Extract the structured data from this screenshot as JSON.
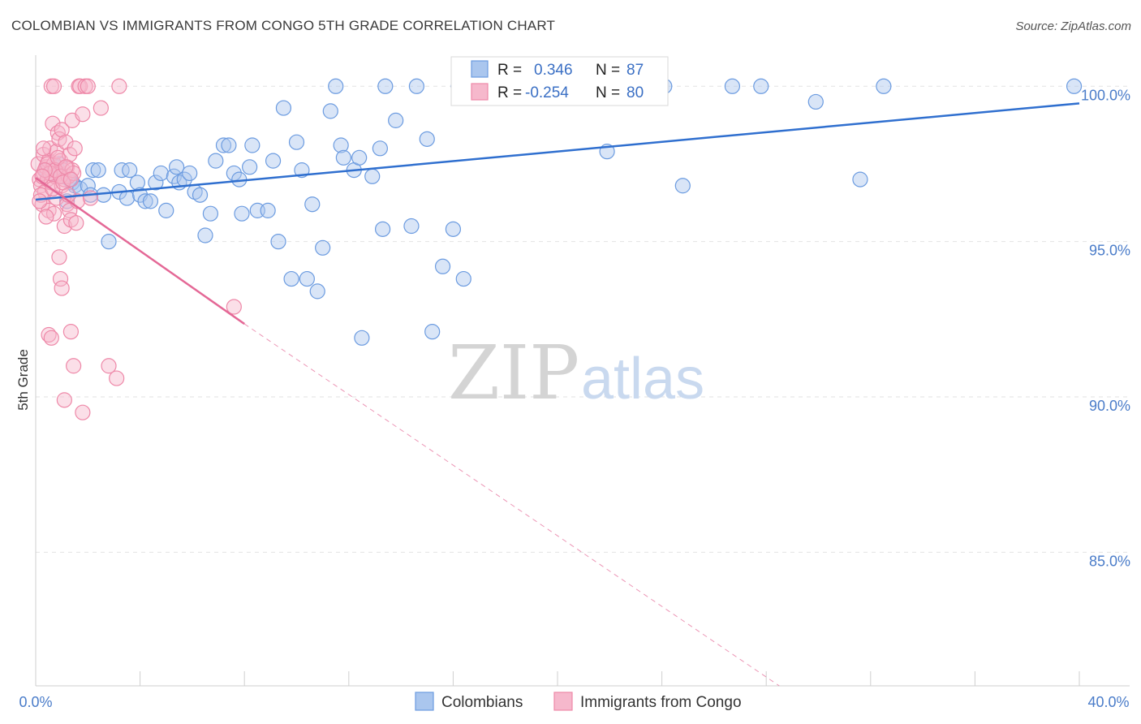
{
  "header": {
    "title": "COLOMBIAN VS IMMIGRANTS FROM CONGO 5TH GRADE CORRELATION CHART",
    "source": "Source: ZipAtlas.com"
  },
  "watermark": {
    "zip": "ZIP",
    "atlas": "atlas"
  },
  "colors": {
    "blue_fill": "#aac6ee",
    "blue_stroke": "#6b9be0",
    "blue_line": "#2f6fcf",
    "pink_fill": "#f6b8cc",
    "pink_stroke": "#ee88a8",
    "pink_line": "#e46896",
    "grid": "#e2e2e2",
    "axis_text": "#4a7cc9"
  },
  "legend": {
    "rows": [
      {
        "r_label": "R =",
        "r_value": "0.346",
        "n_label": "N =",
        "n_value": "87"
      },
      {
        "r_label": "R =",
        "r_value": "-0.254",
        "n_label": "N =",
        "n_value": "80"
      }
    ]
  },
  "chart_data": {
    "type": "scatter",
    "title": "COLOMBIAN VS IMMIGRANTS FROM CONGO 5TH GRADE CORRELATION CHART",
    "xlabel": "",
    "ylabel": "5th Grade",
    "xlim": [
      0,
      40
    ],
    "ylim": [
      80.7,
      101.0
    ],
    "x_tick_labels": [
      "0.0%",
      "40.0%"
    ],
    "y_ticks": [
      85,
      90,
      95,
      100
    ],
    "y_tick_labels": [
      "85.0%",
      "90.0%",
      "95.0%",
      "100.0%"
    ],
    "grid": true,
    "legend_position": "top-center",
    "series": [
      {
        "name": "Colombians",
        "r": 0.346,
        "n": 87,
        "trend": {
          "x": [
            0,
            40
          ],
          "y": [
            96.35,
            99.45
          ],
          "style": "solid"
        },
        "points": [
          [
            0.4,
            97.3
          ],
          [
            0.6,
            97.2
          ],
          [
            0.8,
            97.4
          ],
          [
            1.0,
            97.1
          ],
          [
            1.2,
            96.3
          ],
          [
            1.4,
            96.9
          ],
          [
            1.5,
            96.8
          ],
          [
            1.7,
            96.7
          ],
          [
            2.0,
            96.8
          ],
          [
            2.2,
            97.3
          ],
          [
            2.4,
            97.3
          ],
          [
            2.6,
            96.5
          ],
          [
            2.8,
            95.0
          ],
          [
            3.2,
            96.6
          ],
          [
            3.3,
            97.3
          ],
          [
            3.5,
            96.4
          ],
          [
            3.6,
            97.3
          ],
          [
            3.9,
            96.9
          ],
          [
            4.0,
            96.5
          ],
          [
            4.2,
            96.3
          ],
          [
            4.4,
            96.3
          ],
          [
            4.6,
            96.9
          ],
          [
            4.8,
            97.2
          ],
          [
            5.0,
            96.0
          ],
          [
            5.3,
            97.1
          ],
          [
            5.4,
            97.4
          ],
          [
            5.5,
            96.9
          ],
          [
            5.7,
            97.0
          ],
          [
            5.9,
            97.2
          ],
          [
            6.1,
            96.6
          ],
          [
            6.3,
            96.5
          ],
          [
            6.5,
            95.2
          ],
          [
            6.7,
            95.9
          ],
          [
            6.9,
            97.6
          ],
          [
            7.2,
            98.1
          ],
          [
            7.4,
            98.1
          ],
          [
            7.6,
            97.2
          ],
          [
            7.8,
            97.0
          ],
          [
            7.9,
            95.9
          ],
          [
            8.2,
            97.4
          ],
          [
            8.3,
            98.1
          ],
          [
            8.5,
            96.0
          ],
          [
            8.9,
            96.0
          ],
          [
            9.1,
            97.6
          ],
          [
            9.3,
            95.0
          ],
          [
            9.5,
            99.3
          ],
          [
            9.8,
            93.8
          ],
          [
            10.0,
            98.2
          ],
          [
            10.2,
            97.3
          ],
          [
            10.4,
            93.8
          ],
          [
            10.6,
            96.2
          ],
          [
            10.8,
            93.4
          ],
          [
            11.0,
            94.8
          ],
          [
            11.3,
            99.2
          ],
          [
            11.5,
            100.0
          ],
          [
            11.7,
            98.1
          ],
          [
            11.8,
            97.7
          ],
          [
            12.2,
            97.3
          ],
          [
            12.4,
            97.7
          ],
          [
            12.5,
            91.9
          ],
          [
            12.9,
            97.1
          ],
          [
            13.2,
            98.0
          ],
          [
            13.3,
            95.4
          ],
          [
            13.4,
            100.0
          ],
          [
            13.8,
            98.9
          ],
          [
            14.4,
            95.5
          ],
          [
            14.6,
            100.0
          ],
          [
            15.0,
            98.3
          ],
          [
            15.2,
            92.1
          ],
          [
            15.6,
            94.2
          ],
          [
            16.0,
            95.4
          ],
          [
            16.2,
            100.0
          ],
          [
            16.4,
            93.8
          ],
          [
            17.4,
            100.0
          ],
          [
            17.9,
            100.0
          ],
          [
            21.9,
            97.9
          ],
          [
            24.1,
            100.0
          ],
          [
            24.8,
            96.8
          ],
          [
            26.7,
            100.0
          ],
          [
            27.8,
            100.0
          ],
          [
            29.9,
            99.5
          ],
          [
            31.6,
            97.0
          ],
          [
            32.5,
            100.0
          ],
          [
            39.8,
            100.0
          ],
          [
            0.9,
            97.5
          ],
          [
            1.3,
            97.0
          ],
          [
            2.1,
            96.5
          ]
        ]
      },
      {
        "name": "Immigrants from Congo",
        "r": -0.254,
        "n": 80,
        "trend": {
          "x": [
            0,
            8.0
          ],
          "y": [
            97.05,
            92.35
          ],
          "style": "solid"
        },
        "trend_extension": {
          "x": [
            8.0,
            28.5
          ],
          "y": [
            92.35,
            80.7
          ],
          "style": "dashed"
        },
        "points": [
          [
            0.1,
            97.5
          ],
          [
            0.15,
            97.0
          ],
          [
            0.2,
            96.8
          ],
          [
            0.25,
            96.2
          ],
          [
            0.3,
            97.8
          ],
          [
            0.3,
            97.2
          ],
          [
            0.35,
            96.6
          ],
          [
            0.4,
            97.4
          ],
          [
            0.45,
            97.0
          ],
          [
            0.5,
            96.0
          ],
          [
            0.5,
            97.6
          ],
          [
            0.55,
            98.0
          ],
          [
            0.6,
            97.3
          ],
          [
            0.6,
            96.9
          ],
          [
            0.65,
            98.8
          ],
          [
            0.7,
            97.5
          ],
          [
            0.7,
            95.9
          ],
          [
            0.75,
            97.1
          ],
          [
            0.8,
            96.4
          ],
          [
            0.8,
            97.9
          ],
          [
            0.85,
            98.5
          ],
          [
            0.9,
            97.2
          ],
          [
            0.9,
            98.3
          ],
          [
            0.95,
            97.6
          ],
          [
            1.0,
            96.8
          ],
          [
            1.0,
            98.6
          ],
          [
            1.05,
            97.3
          ],
          [
            1.1,
            95.5
          ],
          [
            1.1,
            97.0
          ],
          [
            1.15,
            98.2
          ],
          [
            1.2,
            97.4
          ],
          [
            1.2,
            96.2
          ],
          [
            1.25,
            97.1
          ],
          [
            1.3,
            96.0
          ],
          [
            1.3,
            97.8
          ],
          [
            1.35,
            95.7
          ],
          [
            1.4,
            97.3
          ],
          [
            1.4,
            98.9
          ],
          [
            1.45,
            97.2
          ],
          [
            1.5,
            98.0
          ],
          [
            1.55,
            95.6
          ],
          [
            1.6,
            96.3
          ],
          [
            1.65,
            100.0
          ],
          [
            1.7,
            100.0
          ],
          [
            1.8,
            99.1
          ],
          [
            1.9,
            100.0
          ],
          [
            2.0,
            100.0
          ],
          [
            2.1,
            96.4
          ],
          [
            0.6,
            100.0
          ],
          [
            0.7,
            100.0
          ],
          [
            0.9,
            94.5
          ],
          [
            0.95,
            93.8
          ],
          [
            1.0,
            93.5
          ],
          [
            0.5,
            92.0
          ],
          [
            0.6,
            91.9
          ],
          [
            1.35,
            92.1
          ],
          [
            1.45,
            91.0
          ],
          [
            2.8,
            91.0
          ],
          [
            3.1,
            90.6
          ],
          [
            1.1,
            89.9
          ],
          [
            1.8,
            89.5
          ],
          [
            2.5,
            99.3
          ],
          [
            3.2,
            100.0
          ],
          [
            7.6,
            92.9
          ],
          [
            0.2,
            96.5
          ],
          [
            0.3,
            98.0
          ],
          [
            0.4,
            95.8
          ],
          [
            0.45,
            97.5
          ],
          [
            0.55,
            97.2
          ],
          [
            0.65,
            96.7
          ],
          [
            0.75,
            97.3
          ],
          [
            0.85,
            97.7
          ],
          [
            0.95,
            97.1
          ],
          [
            1.05,
            96.9
          ],
          [
            1.15,
            97.4
          ],
          [
            1.25,
            96.5
          ],
          [
            1.35,
            97.0
          ],
          [
            0.35,
            97.3
          ],
          [
            0.25,
            97.1
          ],
          [
            0.15,
            96.3
          ]
        ]
      }
    ]
  }
}
